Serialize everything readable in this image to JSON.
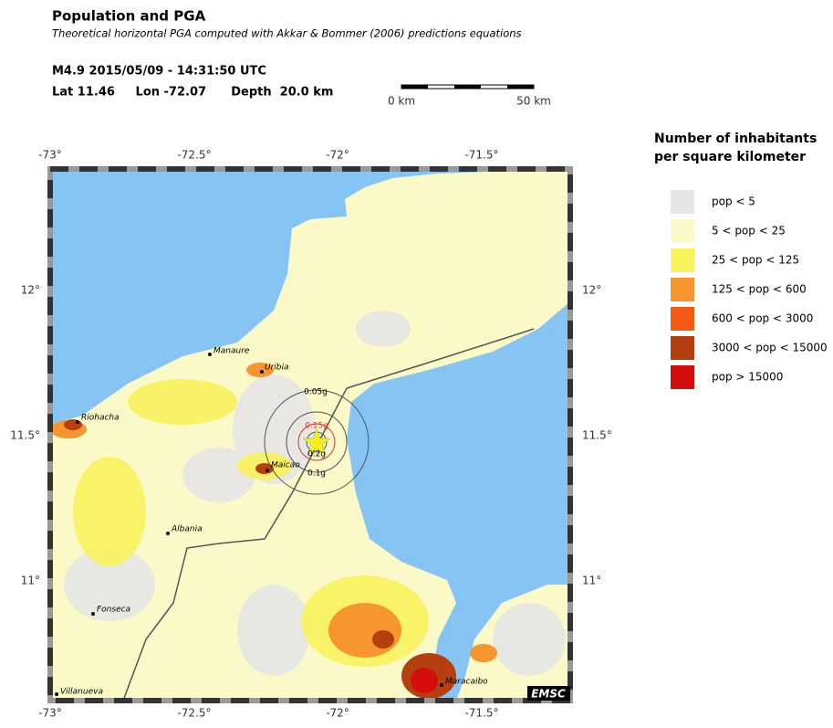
{
  "header": {
    "title": "Population and PGA",
    "subtitle": "Theoretical horizontal PGA computed with Akkar & Bommer (2006) predictions equations",
    "event": "M4.9  2015/05/09 - 14:31:50 UTC",
    "location": "Lat 11.46     Lon -72.07      Depth  20.0 km"
  },
  "scale_bar": {
    "start": "0 km",
    "end": "50 km"
  },
  "map": {
    "x_labels": [
      "-73°",
      "-72.5°",
      "-72°",
      "-71.5°"
    ],
    "y_labels": [
      "12°",
      "11.5°",
      "11°"
    ],
    "cities": [
      "Manaure",
      "Uribia",
      "Riohacha",
      "Maicao",
      "Albania",
      "Fonseca",
      "Villanueva",
      "Maracaibo"
    ],
    "pga_contours": [
      "0.05g",
      "0.15g",
      "0.2g",
      "0.1g"
    ],
    "logo": "EMSC"
  },
  "legend": {
    "title": [
      "Number of inhabitants",
      "per square kilometer"
    ],
    "items": [
      {
        "label": "pop < 5",
        "color": "#e6e6e6"
      },
      {
        "label": "5 < pop < 25",
        "color": "#fbf9c8"
      },
      {
        "label": "25 < pop < 125",
        "color": "#f8f35c"
      },
      {
        "label": "125 < pop < 600",
        "color": "#f7952e"
      },
      {
        "label": "600 < pop < 3000",
        "color": "#f45a14"
      },
      {
        "label": "3000 < pop < 15000",
        "color": "#b4400f"
      },
      {
        "label": "pop > 15000",
        "color": "#d40d0d"
      }
    ]
  }
}
